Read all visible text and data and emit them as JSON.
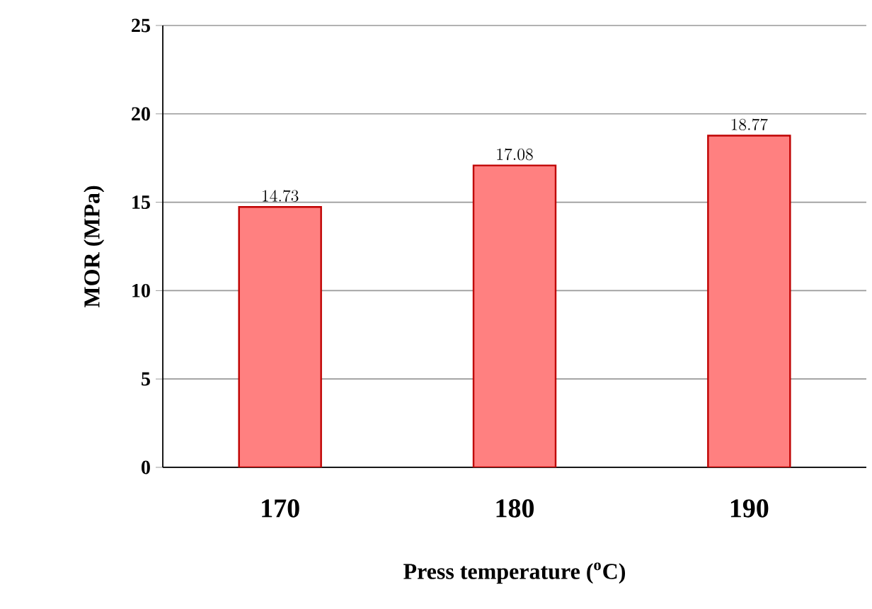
{
  "chart_data": {
    "type": "bar",
    "xlabel": "Press temperature ($^{o}$C)",
    "ylabel": "MOR (MPa)",
    "categories": [
      "170",
      "180",
      "190"
    ],
    "values": [
      14.73,
      17.08,
      18.77
    ],
    "color": "#ff8080",
    "ylim": [
      0,
      25
    ],
    "yticks": [
      0,
      5,
      10,
      15,
      20,
      25
    ],
    "grid": "y",
    "data_labels": true
  }
}
